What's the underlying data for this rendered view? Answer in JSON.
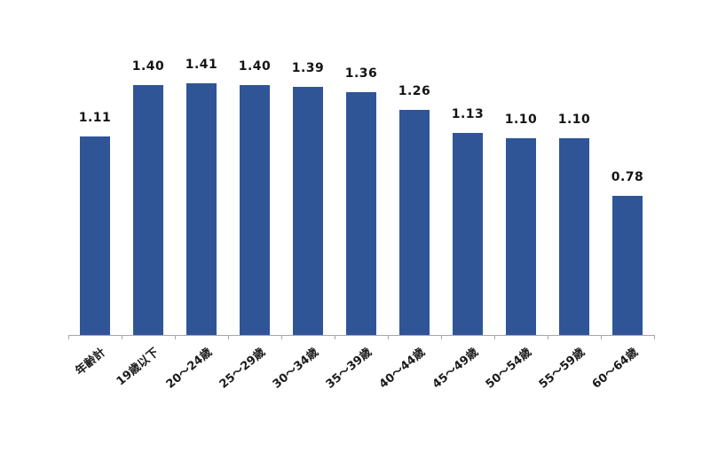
{
  "chart_data": {
    "type": "bar",
    "title": "",
    "xlabel": "",
    "ylabel": "",
    "categories": [
      "年齢計",
      "19歳以下",
      "20〜24歳",
      "25〜29歳",
      "30〜34歳",
      "35〜39歳",
      "40〜44歳",
      "45〜49歳",
      "50〜54歳",
      "55〜59歳",
      "60〜64歳"
    ],
    "values": [
      1.11,
      1.4,
      1.41,
      1.4,
      1.39,
      1.36,
      1.26,
      1.13,
      1.1,
      1.1,
      0.78
    ],
    "value_labels": [
      "1.11",
      "1.40",
      "1.41",
      "1.40",
      "1.39",
      "1.36",
      "1.26",
      "1.13",
      "1.10",
      "1.10",
      "0.78"
    ],
    "ylim": [
      0,
      1.5
    ],
    "grid": false,
    "legend": "none",
    "colors": {
      "bar": "#2F5597",
      "axis": "#A6A6A6",
      "value_label_text": "#141414",
      "category_label_text": "#1A1A1A",
      "background": "#FFFFFF"
    }
  }
}
